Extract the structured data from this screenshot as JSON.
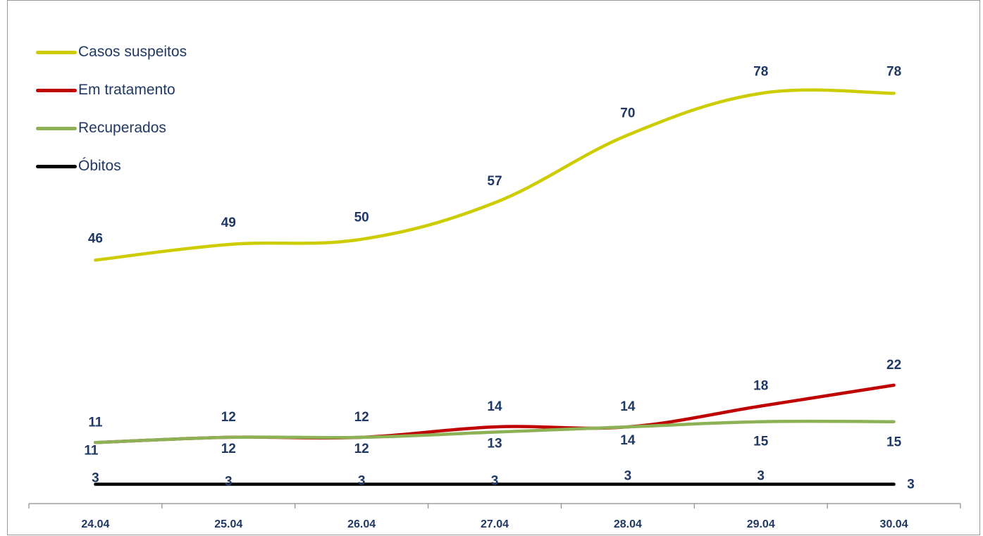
{
  "chart_data": {
    "type": "line",
    "categories": [
      "24.04",
      "25.04",
      "26.04",
      "27.04",
      "28.04",
      "29.04",
      "30.04"
    ],
    "series": [
      {
        "name": "Casos suspeitos",
        "color": "#cccc00",
        "values": [
          46,
          49,
          50,
          57,
          70,
          78,
          78
        ],
        "label_pos": "above"
      },
      {
        "name": "Em tratamento",
        "color": "#c00000",
        "values": [
          11,
          12,
          12,
          14,
          14,
          18,
          22
        ],
        "label_pos": "above"
      },
      {
        "name": "Recuperados",
        "color": "#8db255",
        "values": [
          11,
          12,
          12,
          13,
          14,
          15,
          15
        ],
        "label_pos": "below"
      },
      {
        "name": "Óbitos",
        "color": "#000000",
        "values": [
          3,
          3,
          3,
          3,
          3,
          3,
          3
        ],
        "label_pos": "above"
      }
    ],
    "legend_position": "top-left",
    "grid": false,
    "xlabel": "",
    "ylabel": ""
  }
}
